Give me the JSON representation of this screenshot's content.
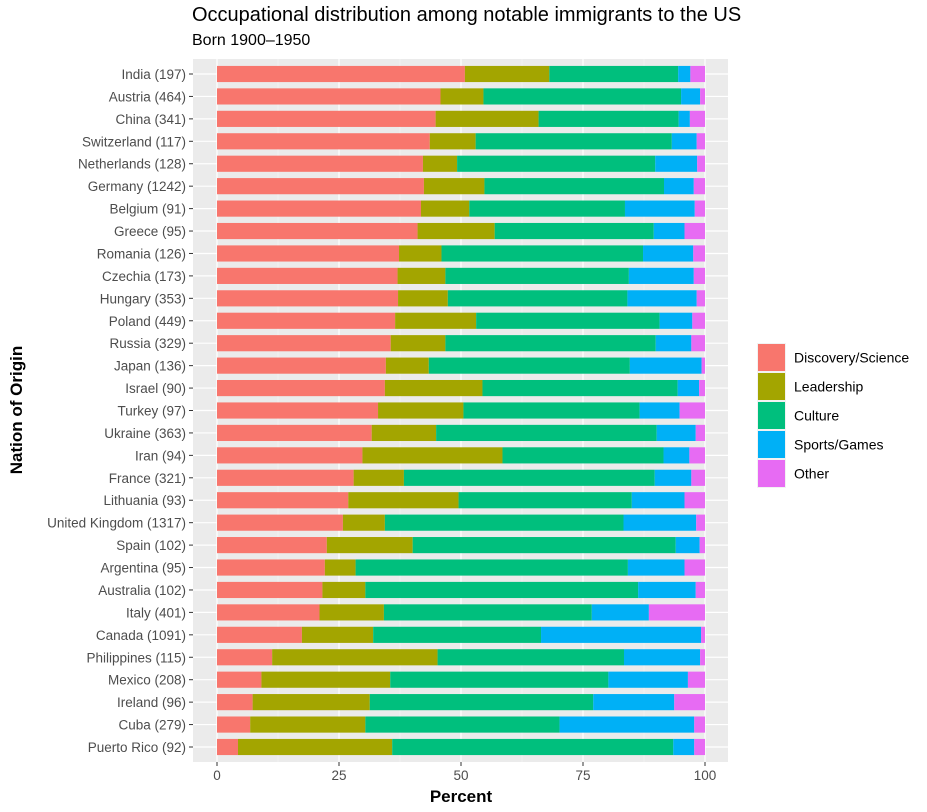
{
  "chart_data": {
    "type": "bar",
    "orientation": "horizontal",
    "stacked": true,
    "title": "Occupational distribution among notable immigrants to the US",
    "subtitle": "Born 1900–1950",
    "xlabel": "Percent",
    "ylabel": "Nation of Origin",
    "xlim": [
      0,
      100
    ],
    "xticks": [
      0,
      25,
      50,
      75,
      100
    ],
    "grid": true,
    "legend_position": "right",
    "series": [
      {
        "name": "Discovery/Science",
        "color": "#F8766D"
      },
      {
        "name": "Leadership",
        "color": "#A3A500"
      },
      {
        "name": "Culture",
        "color": "#00BF7D"
      },
      {
        "name": "Sports/Games",
        "color": "#00B0F6"
      },
      {
        "name": "Other",
        "color": "#E76BF3"
      }
    ],
    "categories": [
      "India (197)",
      "Austria (464)",
      "China (341)",
      "Switzerland (117)",
      "Netherlands (128)",
      "Germany (1242)",
      "Belgium (91)",
      "Greece (95)",
      "Romania (126)",
      "Czechia (173)",
      "Hungary (353)",
      "Poland (449)",
      "Russia (329)",
      "Japan (136)",
      "Israel (90)",
      "Turkey (97)",
      "Ukraine (363)",
      "Iran (94)",
      "France (321)",
      "Lithuania (93)",
      "United Kingdom (1317)",
      "Spain (102)",
      "Argentina (95)",
      "Australia (102)",
      "Italy (401)",
      "Canada (1091)",
      "Philippines (115)",
      "Mexico (208)",
      "Ireland (96)",
      "Cuba (279)",
      "Puerto Rico (92)"
    ],
    "values": [
      [
        50.8,
        17.3,
        26.4,
        2.5,
        3.0
      ],
      [
        45.8,
        8.8,
        40.5,
        3.9,
        1.0
      ],
      [
        44.8,
        21.1,
        28.7,
        2.3,
        3.1
      ],
      [
        43.6,
        9.4,
        40.2,
        5.1,
        1.7
      ],
      [
        42.2,
        7.0,
        40.6,
        8.6,
        1.6
      ],
      [
        42.4,
        12.4,
        36.8,
        6.1,
        2.3
      ],
      [
        41.8,
        9.9,
        31.9,
        14.3,
        2.1
      ],
      [
        41.1,
        15.8,
        32.6,
        6.3,
        4.2
      ],
      [
        37.3,
        8.7,
        41.3,
        10.3,
        2.4
      ],
      [
        37.0,
        9.8,
        37.6,
        13.3,
        2.3
      ],
      [
        37.1,
        10.2,
        36.8,
        14.2,
        1.7
      ],
      [
        36.5,
        16.6,
        37.6,
        6.7,
        2.6
      ],
      [
        35.6,
        11.2,
        43.1,
        7.3,
        2.8
      ],
      [
        34.6,
        8.8,
        41.2,
        14.7,
        0.7
      ],
      [
        34.4,
        20.0,
        40.0,
        4.4,
        1.2
      ],
      [
        33.0,
        17.5,
        36.1,
        8.2,
        5.2
      ],
      [
        31.7,
        13.2,
        45.2,
        8.0,
        1.9
      ],
      [
        29.8,
        28.7,
        33.0,
        5.3,
        3.2
      ],
      [
        28.0,
        10.3,
        51.4,
        7.5,
        2.8
      ],
      [
        26.9,
        22.6,
        35.5,
        10.8,
        4.2
      ],
      [
        25.8,
        8.6,
        48.9,
        14.9,
        1.8
      ],
      [
        22.5,
        17.6,
        53.9,
        4.9,
        1.1
      ],
      [
        22.1,
        6.3,
        55.8,
        11.6,
        4.2
      ],
      [
        21.6,
        8.8,
        55.9,
        11.8,
        1.9
      ],
      [
        21.0,
        13.2,
        42.6,
        11.7,
        11.5
      ],
      [
        17.4,
        14.6,
        34.4,
        32.8,
        0.8
      ],
      [
        11.3,
        33.9,
        38.2,
        15.6,
        1.0
      ],
      [
        9.1,
        26.4,
        44.7,
        16.3,
        3.5
      ],
      [
        7.3,
        24.0,
        45.8,
        16.6,
        6.3
      ],
      [
        6.8,
        23.6,
        39.8,
        27.6,
        2.2
      ],
      [
        4.3,
        31.6,
        57.6,
        4.3,
        2.2
      ]
    ]
  }
}
